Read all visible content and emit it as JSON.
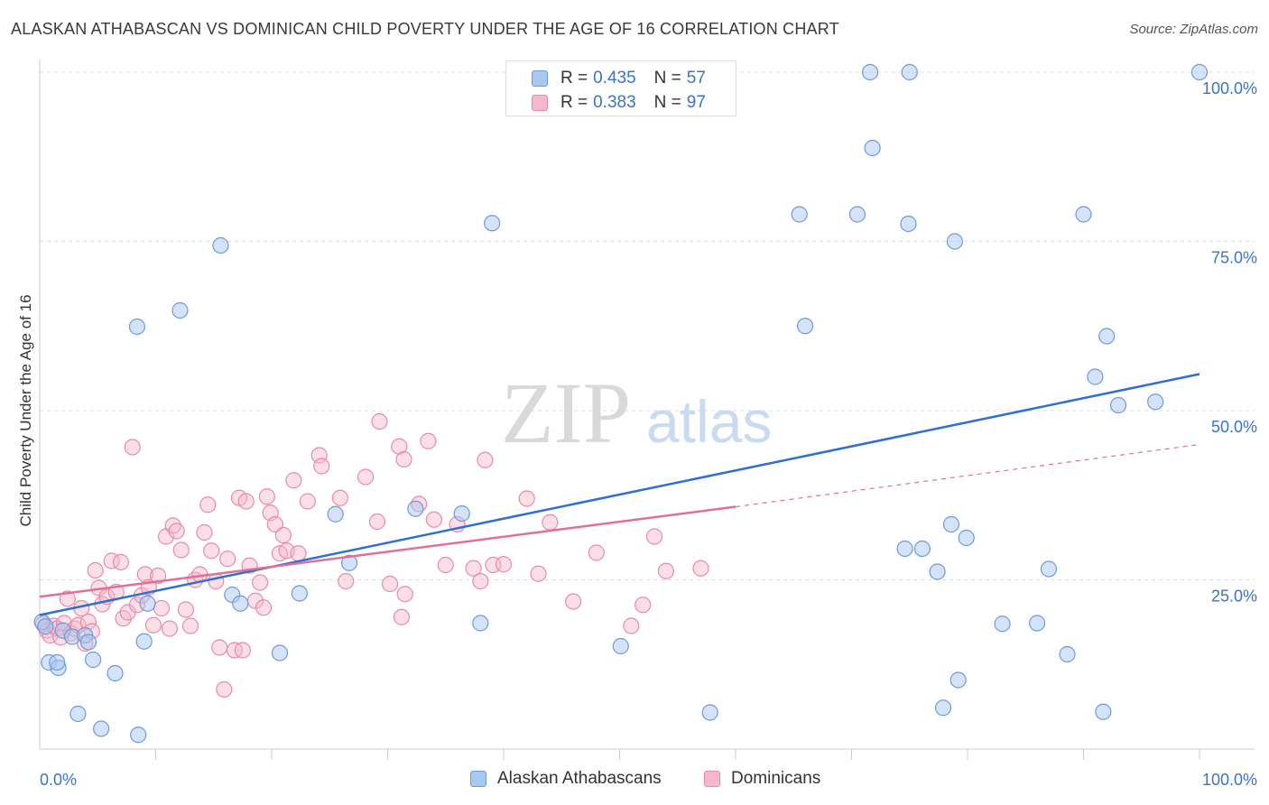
{
  "title": "ALASKAN ATHABASCAN VS DOMINICAN CHILD POVERTY UNDER THE AGE OF 16 CORRELATION CHART",
  "source": "Source: ZipAtlas.com",
  "watermark": {
    "zip": "ZIP",
    "atlas": "atlas"
  },
  "legend": {
    "rows": [
      {
        "r_label": "R =",
        "r_value": "0.435",
        "n_label": "N =",
        "n_value": "57"
      },
      {
        "r_label": "R =",
        "r_value": "0.383",
        "n_label": "N =",
        "n_value": "97"
      }
    ]
  },
  "colors": {
    "blue_fill": "#a9c8f0",
    "blue_stroke": "#6e9ad8",
    "blue_line": "#2f6fcf",
    "pink_fill": "#f5b8ca",
    "pink_stroke": "#e88aa8",
    "pink_line": "#e0709a",
    "tick_text": "#3b73c6",
    "grid": "#dddddd"
  },
  "chart_data": {
    "type": "scatter",
    "title": "ALASKAN ATHABASCAN VS DOMINICAN CHILD POVERTY UNDER THE AGE OF 16 CORRELATION CHART",
    "xlabel": "",
    "ylabel": "Child Poverty Under the Age of 16",
    "xlim": [
      0,
      100
    ],
    "ylim": [
      0,
      100
    ],
    "x_tick_labels": [
      "0.0%",
      "100.0%"
    ],
    "y_ticks": [
      25,
      50,
      75,
      100
    ],
    "y_tick_labels": [
      "25.0%",
      "50.0%",
      "75.0%",
      "100.0%"
    ],
    "grid": true,
    "legend_position": "top-center",
    "series": [
      {
        "name": "Alaskan Athabascans",
        "color": "#a9c8f0",
        "r": 0.435,
        "n": 57,
        "trendline": {
          "x": [
            0,
            100
          ],
          "y": [
            19.8,
            55.4
          ]
        },
        "points": [
          [
            0.2,
            18.8
          ],
          [
            0.8,
            12.8
          ],
          [
            1.6,
            12.0
          ],
          [
            1.5,
            12.8
          ],
          [
            2.0,
            17.5
          ],
          [
            2.8,
            16.6
          ],
          [
            3.3,
            5.2
          ],
          [
            3.9,
            16.8
          ],
          [
            4.2,
            15.8
          ],
          [
            4.6,
            13.2
          ],
          [
            5.3,
            3.0
          ],
          [
            6.5,
            11.2
          ],
          [
            8.4,
            62.4
          ],
          [
            8.5,
            2.1
          ],
          [
            9.0,
            15.9
          ],
          [
            9.3,
            21.5
          ],
          [
            12.1,
            64.8
          ],
          [
            15.6,
            74.4
          ],
          [
            16.6,
            22.8
          ],
          [
            17.3,
            21.5
          ],
          [
            20.7,
            14.2
          ],
          [
            22.4,
            23.0
          ],
          [
            25.5,
            34.7
          ],
          [
            26.7,
            27.5
          ],
          [
            32.4,
            35.5
          ],
          [
            36.4,
            34.8
          ],
          [
            38.0,
            18.6
          ],
          [
            39.0,
            77.7
          ],
          [
            50.1,
            15.2
          ],
          [
            57.8,
            5.4
          ],
          [
            65.5,
            79.0
          ],
          [
            66.0,
            62.5
          ],
          [
            70.5,
            79.0
          ],
          [
            71.6,
            100.0
          ],
          [
            71.8,
            88.8
          ],
          [
            74.6,
            29.6
          ],
          [
            75.0,
            100.0
          ],
          [
            74.9,
            77.6
          ],
          [
            76.1,
            29.6
          ],
          [
            77.4,
            26.2
          ],
          [
            77.9,
            6.1
          ],
          [
            78.6,
            33.2
          ],
          [
            78.9,
            75.0
          ],
          [
            79.2,
            10.2
          ],
          [
            79.9,
            31.2
          ],
          [
            83.0,
            18.5
          ],
          [
            86.0,
            18.6
          ],
          [
            87.0,
            26.6
          ],
          [
            88.6,
            14.0
          ],
          [
            90.0,
            79.0
          ],
          [
            91.7,
            5.5
          ],
          [
            91.0,
            55.0
          ],
          [
            92.0,
            61.0
          ],
          [
            93.0,
            50.8
          ],
          [
            96.2,
            51.3
          ],
          [
            100.0,
            100.0
          ],
          [
            0.5,
            18.1
          ]
        ]
      },
      {
        "name": "Dominicans",
        "color": "#f5b8ca",
        "r": 0.383,
        "n": 97,
        "trendline": {
          "x": [
            0,
            60
          ],
          "y": [
            22.5,
            35.8
          ]
        },
        "trendline_dashed": {
          "x": [
            60,
            100
          ],
          "y": [
            35.8,
            45.0
          ]
        },
        "points": [
          [
            0.3,
            18.5
          ],
          [
            0.6,
            17.5
          ],
          [
            0.9,
            16.8
          ],
          [
            1.2,
            18.2
          ],
          [
            1.5,
            17.8
          ],
          [
            1.8,
            16.5
          ],
          [
            2.1,
            18.6
          ],
          [
            2.4,
            22.2
          ],
          [
            2.7,
            17.1
          ],
          [
            3.0,
            17.8
          ],
          [
            3.3,
            18.3
          ],
          [
            3.6,
            20.8
          ],
          [
            3.9,
            15.6
          ],
          [
            4.2,
            18.8
          ],
          [
            4.5,
            17.4
          ],
          [
            4.8,
            26.4
          ],
          [
            5.1,
            23.8
          ],
          [
            5.4,
            21.4
          ],
          [
            5.8,
            22.5
          ],
          [
            6.2,
            27.8
          ],
          [
            6.6,
            23.2
          ],
          [
            7.0,
            27.6
          ],
          [
            7.2,
            19.3
          ],
          [
            7.6,
            20.2
          ],
          [
            8.0,
            44.6
          ],
          [
            8.4,
            21.3
          ],
          [
            8.8,
            22.7
          ],
          [
            9.1,
            25.8
          ],
          [
            9.4,
            23.9
          ],
          [
            9.8,
            18.3
          ],
          [
            10.2,
            25.6
          ],
          [
            10.5,
            20.8
          ],
          [
            10.9,
            31.4
          ],
          [
            11.2,
            17.8
          ],
          [
            11.5,
            33.0
          ],
          [
            11.8,
            32.2
          ],
          [
            12.2,
            29.4
          ],
          [
            12.6,
            20.6
          ],
          [
            13.0,
            18.2
          ],
          [
            13.4,
            25.0
          ],
          [
            13.8,
            25.8
          ],
          [
            14.2,
            32.0
          ],
          [
            14.5,
            36.1
          ],
          [
            14.8,
            29.3
          ],
          [
            15.2,
            24.8
          ],
          [
            15.5,
            15.0
          ],
          [
            15.9,
            8.8
          ],
          [
            16.2,
            28.1
          ],
          [
            16.8,
            14.6
          ],
          [
            17.2,
            37.1
          ],
          [
            17.5,
            14.6
          ],
          [
            17.8,
            36.6
          ],
          [
            18.1,
            27.1
          ],
          [
            18.6,
            21.9
          ],
          [
            19.0,
            24.6
          ],
          [
            19.3,
            20.9
          ],
          [
            19.6,
            37.3
          ],
          [
            19.9,
            34.9
          ],
          [
            20.3,
            33.2
          ],
          [
            20.7,
            28.9
          ],
          [
            21.0,
            31.6
          ],
          [
            21.3,
            29.3
          ],
          [
            21.9,
            39.7
          ],
          [
            22.3,
            28.9
          ],
          [
            23.1,
            36.6
          ],
          [
            24.1,
            43.4
          ],
          [
            24.3,
            41.8
          ],
          [
            25.9,
            37.1
          ],
          [
            26.4,
            24.8
          ],
          [
            28.1,
            40.2
          ],
          [
            29.1,
            33.6
          ],
          [
            29.3,
            48.4
          ],
          [
            30.2,
            24.4
          ],
          [
            31.0,
            44.7
          ],
          [
            31.2,
            19.5
          ],
          [
            31.4,
            42.8
          ],
          [
            31.5,
            22.9
          ],
          [
            32.7,
            36.2
          ],
          [
            33.5,
            45.5
          ],
          [
            34.0,
            33.9
          ],
          [
            35.0,
            27.2
          ],
          [
            36.0,
            33.2
          ],
          [
            37.4,
            26.7
          ],
          [
            38.0,
            24.8
          ],
          [
            38.4,
            42.7
          ],
          [
            39.1,
            27.2
          ],
          [
            40.0,
            27.3
          ],
          [
            42.0,
            37.0
          ],
          [
            43.0,
            25.9
          ],
          [
            44.0,
            33.5
          ],
          [
            46.0,
            21.8
          ],
          [
            48.0,
            29.0
          ],
          [
            51.0,
            18.2
          ],
          [
            52.0,
            21.3
          ],
          [
            53.0,
            31.4
          ],
          [
            54.0,
            26.3
          ],
          [
            57.0,
            26.7
          ]
        ]
      }
    ]
  }
}
